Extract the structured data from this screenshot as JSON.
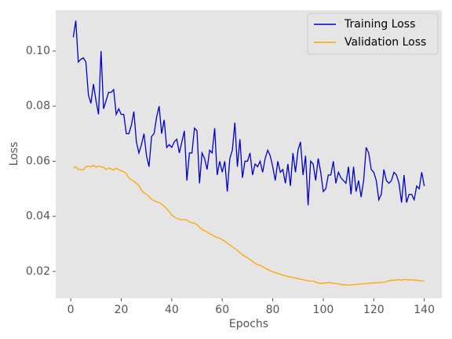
{
  "chart_data": {
    "type": "line",
    "xlabel": "Epochs",
    "ylabel": "Loss",
    "x": [
      1,
      2,
      3,
      4,
      5,
      6,
      7,
      8,
      9,
      10,
      11,
      12,
      13,
      14,
      15,
      16,
      17,
      18,
      19,
      20,
      21,
      22,
      23,
      24,
      25,
      26,
      27,
      28,
      29,
      30,
      31,
      32,
      33,
      34,
      35,
      36,
      37,
      38,
      39,
      40,
      41,
      42,
      43,
      44,
      45,
      46,
      47,
      48,
      49,
      50,
      51,
      52,
      53,
      54,
      55,
      56,
      57,
      58,
      59,
      60,
      61,
      62,
      63,
      64,
      65,
      66,
      67,
      68,
      69,
      70,
      71,
      72,
      73,
      74,
      75,
      76,
      77,
      78,
      79,
      80,
      81,
      82,
      83,
      84,
      85,
      86,
      87,
      88,
      89,
      90,
      91,
      92,
      93,
      94,
      95,
      96,
      97,
      98,
      99,
      100,
      101,
      102,
      103,
      104,
      105,
      106,
      107,
      108,
      109,
      110,
      111,
      112,
      113,
      114,
      115,
      116,
      117,
      118,
      119,
      120,
      121,
      122,
      123,
      124,
      125,
      126,
      127,
      128,
      129,
      130,
      131,
      132,
      133,
      134,
      135,
      136,
      137,
      138,
      139,
      140
    ],
    "series": [
      {
        "name": "Training Loss",
        "color": "#0000cc",
        "values": [
          0.105,
          0.111,
          0.096,
          0.097,
          0.0975,
          0.096,
          0.084,
          0.081,
          0.088,
          0.082,
          0.077,
          0.1,
          0.079,
          0.082,
          0.085,
          0.085,
          0.086,
          0.077,
          0.079,
          0.077,
          0.077,
          0.07,
          0.07,
          0.073,
          0.078,
          0.067,
          0.063,
          0.066,
          0.07,
          0.062,
          0.058,
          0.069,
          0.07,
          0.076,
          0.08,
          0.07,
          0.075,
          0.065,
          0.066,
          0.065,
          0.067,
          0.068,
          0.063,
          0.067,
          0.071,
          0.053,
          0.063,
          0.063,
          0.072,
          0.071,
          0.052,
          0.063,
          0.061,
          0.057,
          0.064,
          0.063,
          0.072,
          0.055,
          0.06,
          0.056,
          0.06,
          0.049,
          0.061,
          0.064,
          0.074,
          0.058,
          0.068,
          0.054,
          0.06,
          0.06,
          0.063,
          0.055,
          0.059,
          0.058,
          0.06,
          0.056,
          0.061,
          0.064,
          0.062,
          0.058,
          0.053,
          0.06,
          0.056,
          0.057,
          0.052,
          0.059,
          0.051,
          0.063,
          0.056,
          0.064,
          0.067,
          0.055,
          0.062,
          0.044,
          0.06,
          0.059,
          0.053,
          0.061,
          0.056,
          0.049,
          0.05,
          0.055,
          0.055,
          0.06,
          0.052,
          0.056,
          0.054,
          0.053,
          0.052,
          0.058,
          0.048,
          0.058,
          0.049,
          0.053,
          0.047,
          0.053,
          0.065,
          0.063,
          0.057,
          0.056,
          0.053,
          0.046,
          0.048,
          0.057,
          0.053,
          0.052,
          0.053,
          0.056,
          0.055,
          0.052,
          0.045,
          0.055,
          0.045,
          0.048,
          0.048,
          0.046,
          0.051,
          0.05,
          0.056,
          0.051
        ]
      },
      {
        "name": "Validation Loss",
        "color": "#ffa500",
        "values": [
          0.0575,
          0.058,
          0.057,
          0.057,
          0.0568,
          0.058,
          0.0582,
          0.058,
          0.0585,
          0.0578,
          0.0582,
          0.058,
          0.0578,
          0.057,
          0.0575,
          0.0572,
          0.0568,
          0.0575,
          0.057,
          0.0565,
          0.0562,
          0.0555,
          0.054,
          0.0533,
          0.0527,
          0.052,
          0.0512,
          0.0495,
          0.0485,
          0.048,
          0.0472,
          0.0462,
          0.0457,
          0.0452,
          0.045,
          0.0445,
          0.0437,
          0.0428,
          0.0417,
          0.0405,
          0.0398,
          0.0393,
          0.039,
          0.0388,
          0.0388,
          0.0387,
          0.038,
          0.0377,
          0.0375,
          0.037,
          0.036,
          0.0353,
          0.0348,
          0.0343,
          0.0337,
          0.0333,
          0.0327,
          0.0323,
          0.032,
          0.0315,
          0.031,
          0.0303,
          0.0297,
          0.029,
          0.0283,
          0.0277,
          0.0268,
          0.026,
          0.0255,
          0.025,
          0.0243,
          0.0237,
          0.023,
          0.0225,
          0.0222,
          0.0217,
          0.0212,
          0.0207,
          0.0203,
          0.0199,
          0.0196,
          0.0193,
          0.019,
          0.0187,
          0.0184,
          0.0182,
          0.018,
          0.0178,
          0.0176,
          0.0174,
          0.0172,
          0.017,
          0.0168,
          0.0166,
          0.0165,
          0.0165,
          0.0162,
          0.0158,
          0.0157,
          0.0158,
          0.0158,
          0.016,
          0.0159,
          0.0157,
          0.0156,
          0.0155,
          0.0153,
          0.0152,
          0.0152,
          0.015,
          0.0151,
          0.0152,
          0.0153,
          0.0154,
          0.0155,
          0.0155,
          0.0156,
          0.0157,
          0.0158,
          0.0158,
          0.0159,
          0.016,
          0.016,
          0.0161,
          0.0163,
          0.0166,
          0.0168,
          0.0168,
          0.0169,
          0.017,
          0.0168,
          0.0171,
          0.017,
          0.0169,
          0.017,
          0.0169,
          0.0168,
          0.0167,
          0.0166,
          0.0165
        ]
      }
    ],
    "xlim": [
      -5.95,
      146.95
    ],
    "xticks": [
      0,
      20,
      40,
      60,
      80,
      100,
      120,
      140
    ],
    "ylim": [
      0.0103,
      0.1148
    ],
    "yticks": [
      0.02,
      0.04,
      0.06,
      0.08,
      {
        "value": 0.1,
        "label": "0.10"
      }
    ],
    "grid": false,
    "legend": "upper right"
  }
}
